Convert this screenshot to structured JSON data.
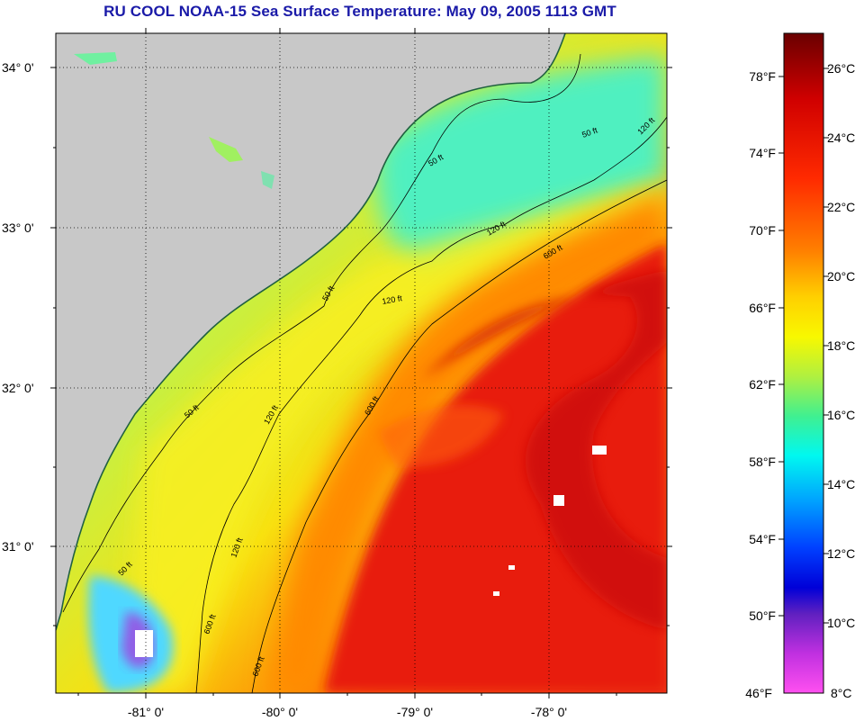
{
  "title": "RU COOL  NOAA-15  Sea Surface Temperature:  May 09, 2005 1113 GMT",
  "map": {
    "lat_labels": [
      "34° 0'",
      "33° 0'",
      "32° 0'",
      "31° 0'"
    ],
    "lon_labels": [
      "-81° 0'",
      "-80° 0'",
      "-79° 0'",
      "-78° 0'"
    ],
    "contour_labels": [
      "50 ft",
      "50 ft",
      "50 ft",
      "50 ft",
      "50 ft",
      "120 ft",
      "120 ft",
      "120 ft",
      "120 ft",
      "120 ft",
      "600 ft",
      "600 ft",
      "600 ft",
      "600 ft"
    ]
  },
  "colorbar": {
    "fahrenheit_labels": [
      "78°F",
      "74°F",
      "70°F",
      "66°F",
      "62°F",
      "58°F",
      "54°F",
      "50°F",
      "46°F"
    ],
    "celsius_labels": [
      "26°C",
      "24°C",
      "22°C",
      "20°C",
      "18°C",
      "16°C",
      "14°C",
      "12°C",
      "10°C",
      "8°C"
    ]
  },
  "colors": {
    "title": "#1a1aa8",
    "land": "#c8c8c8",
    "warm": "#e01010",
    "cool": "#40e0c0",
    "mid": "#f0f020"
  }
}
